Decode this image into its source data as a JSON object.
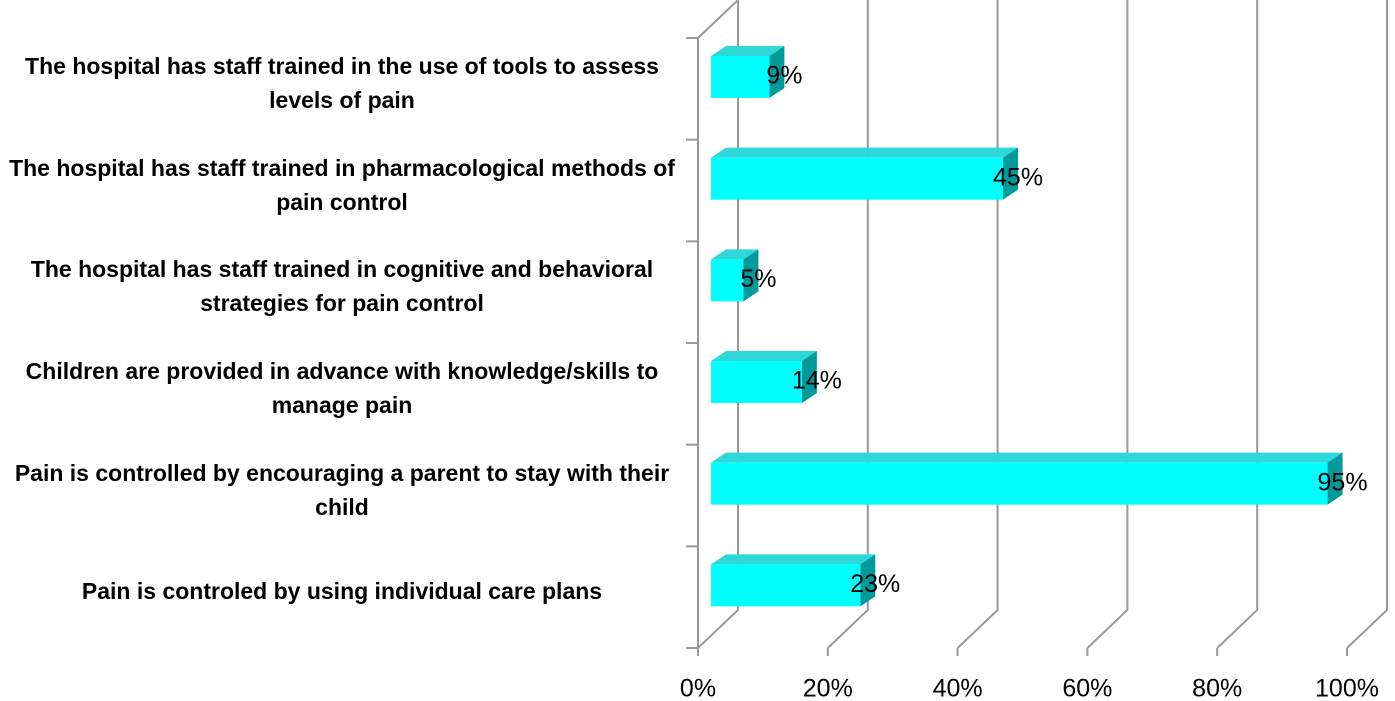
{
  "chart_data": {
    "type": "bar",
    "orientation": "horizontal",
    "categories": [
      "The hospital has staff trained in the use of tools to assess levels of pain",
      "The hospital has staff trained in pharmacological methods of pain control",
      "The hospital has staff trained in cognitive and behavioral strategies for pain control",
      "Children are provided in advance with knowledge/skills to manage pain",
      "Pain is controlled by encouraging a parent to stay with their child",
      "Pain is controled by using individual care plans"
    ],
    "values": [
      9,
      45,
      5,
      14,
      95,
      23
    ],
    "value_labels": [
      "9%",
      "45%",
      "5%",
      "14%",
      "95%",
      "23%"
    ],
    "color": "#00ffff",
    "xlim": [
      0,
      100
    ],
    "xticks": [
      {
        "value": 0,
        "label": "0%"
      },
      {
        "value": 20,
        "label": "20%"
      },
      {
        "value": 40,
        "label": "40%"
      },
      {
        "value": 60,
        "label": "60%"
      },
      {
        "value": 80,
        "label": "80%"
      },
      {
        "value": 100,
        "label": "100%"
      }
    ],
    "grid": true
  }
}
